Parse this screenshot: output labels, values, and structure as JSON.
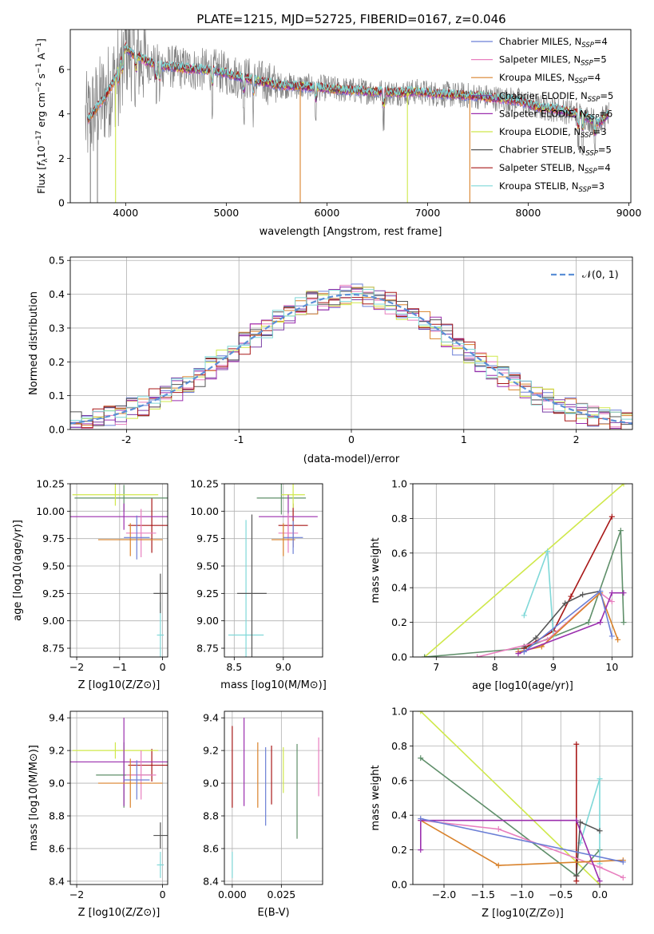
{
  "figure_title": "PLATE=1215, MJD=52725, FIBERID=0167, z=0.046",
  "colors": {
    "chabrier_miles": "#6b7fd6",
    "salpeter_miles": "#e87fbf",
    "kroupa_miles": "#d9822b",
    "chabrier_elodie": "#7b3fa6",
    "salpeter_elodie": "#9b2fae",
    "kroupa_elodie": "#cfe84a",
    "chabrier_stelib": "#555555",
    "salpeter_stelib": "#a81818",
    "kroupa_stelib": "#7fd8d8",
    "data": "#808080",
    "gaussian": "#5b8fd6",
    "green": "#5f8f6a",
    "grid": "#b0b0b0"
  },
  "chart_data": [
    {
      "id": "spectrum",
      "type": "line",
      "title": "",
      "xlabel": "wavelength [Angstrom, rest frame]",
      "ylabel": "Flux [f_λ 10^-17 erg cm^-2 s^-1 A^-1]",
      "xlim": [
        3450,
        9020
      ],
      "ylim": [
        0,
        7.8
      ],
      "xticks": [
        4000,
        5000,
        6000,
        7000,
        8000,
        9000
      ],
      "yticks": [
        0,
        2,
        4,
        6
      ],
      "grid": false,
      "legend_position": "top-right",
      "legend": [
        {
          "label": "Chabrier MILES, N",
          "sub": "SSP",
          "tail": "=4",
          "color_key": "chabrier_miles"
        },
        {
          "label": "Salpeter MILES, N",
          "sub": "SSP",
          "tail": "=5",
          "color_key": "salpeter_miles"
        },
        {
          "label": "Kroupa MILES, N",
          "sub": "SSP",
          "tail": "=4",
          "color_key": "kroupa_miles"
        },
        {
          "label": "Chabrier ELODIE, N",
          "sub": "SSP",
          "tail": "=5",
          "color_key": "chabrier_elodie"
        },
        {
          "label": "Salpeter ELODIE, N",
          "sub": "SSP",
          "tail": "=6",
          "color_key": "salpeter_elodie"
        },
        {
          "label": "Kroupa ELODIE, N",
          "sub": "SSP",
          "tail": "=3",
          "color_key": "kroupa_elodie"
        },
        {
          "label": "Chabrier STELIB, N",
          "sub": "SSP",
          "tail": "=5",
          "color_key": "chabrier_stelib"
        },
        {
          "label": "Salpeter STELIB, N",
          "sub": "SSP",
          "tail": "=4",
          "color_key": "salpeter_stelib"
        },
        {
          "label": "Kroupa STELIB, N",
          "sub": "SSP",
          "tail": "=3",
          "color_key": "kroupa_stelib"
        }
      ],
      "continuum": {
        "x": [
          3620,
          3700,
          3800,
          3900,
          4000,
          4100,
          4200,
          4300,
          4500,
          4700,
          4900,
          5100,
          5300,
          5500,
          5700,
          5900,
          6100,
          6300,
          6500,
          6700,
          6900,
          7100,
          7300,
          7500,
          7700,
          7900,
          8100,
          8300,
          8500,
          8700,
          8800
        ],
        "y": [
          3.7,
          4.2,
          4.8,
          5.6,
          7.0,
          6.6,
          6.4,
          6.2,
          6.1,
          6.0,
          5.95,
          5.7,
          5.5,
          5.3,
          5.25,
          5.2,
          5.1,
          5.05,
          5.0,
          4.95,
          5.0,
          4.9,
          4.85,
          4.8,
          4.7,
          4.6,
          4.3,
          4.2,
          4.0,
          3.6,
          4.0
        ]
      },
      "absorption_x": [
        3934,
        3969,
        4102,
        4304,
        4340,
        4861,
        5175,
        5270,
        5890,
        6563,
        8498,
        8542,
        8662
      ],
      "spikes": [
        {
          "x": 3650,
          "y": 0,
          "color_key": "data"
        },
        {
          "x": 3720,
          "y": 0,
          "color_key": "data"
        },
        {
          "x": 3900,
          "y": 0,
          "color_key": "kroupa_elodie"
        },
        {
          "x": 5735,
          "y": 0,
          "color_key": "kroupa_miles"
        },
        {
          "x": 6800,
          "y": 0,
          "color_key": "kroupa_elodie"
        },
        {
          "x": 7420,
          "y": 0,
          "color_key": "kroupa_miles"
        }
      ]
    },
    {
      "id": "residuals",
      "type": "bar",
      "title": "",
      "xlabel": "(data-model)/error",
      "ylabel": "Normed distribution",
      "xlim": [
        -2.5,
        2.5
      ],
      "ylim": [
        0,
        0.51
      ],
      "xticks": [
        -2,
        -1,
        0,
        1,
        2
      ],
      "yticks": [
        0.0,
        0.1,
        0.2,
        0.3,
        0.4,
        0.5
      ],
      "grid": true,
      "legend_position": "top-right",
      "legend": [
        {
          "label": "𝒩(0, 1)",
          "color_key": "gaussian"
        }
      ],
      "bin_width": 0.1
    },
    {
      "id": "age_vs_Z",
      "type": "scatter",
      "xlabel": "Z [log10(Z/Z⊙)]",
      "ylabel": "age  [log10(age/yr)]",
      "xlim": [
        -2.15,
        0.12
      ],
      "ylim": [
        8.67,
        10.25
      ],
      "xticks": [
        -2,
        -1,
        0
      ],
      "yticks": [
        8.75,
        9.0,
        9.25,
        9.5,
        9.75,
        10.0,
        10.25
      ],
      "grid": true,
      "points": [
        {
          "x": -0.05,
          "y": 8.87,
          "xerr": 0.08,
          "yerr": 0.3,
          "color_key": "kroupa_stelib"
        },
        {
          "x": -0.05,
          "y": 9.25,
          "xerr": 0.16,
          "yerr": 0.18,
          "color_key": "chabrier_stelib"
        },
        {
          "x": -0.25,
          "y": 9.87,
          "xerr": 0.55,
          "yerr": 0.25,
          "color_key": "salpeter_stelib"
        },
        {
          "x": -0.9,
          "y": 10.12,
          "xerr": 1.15,
          "yerr": 0.12,
          "color_key": "green"
        },
        {
          "x": -1.1,
          "y": 10.15,
          "xerr": 1.0,
          "yerr": 0.1,
          "color_key": "kroupa_elodie"
        },
        {
          "x": -0.9,
          "y": 9.95,
          "xerr": 1.3,
          "yerr": 0.12,
          "color_key": "salpeter_elodie"
        },
        {
          "x": -0.5,
          "y": 9.8,
          "xerr": 0.35,
          "yerr": 0.22,
          "color_key": "salpeter_miles"
        },
        {
          "x": -0.75,
          "y": 9.74,
          "xerr": 0.75,
          "yerr": 0.15,
          "color_key": "kroupa_miles"
        },
        {
          "x": -0.6,
          "y": 9.76,
          "xerr": 0.3,
          "yerr": 0.2,
          "color_key": "chabrier_miles"
        }
      ]
    },
    {
      "id": "age_vs_mass",
      "type": "scatter",
      "xlabel": "mass [log10(M/M⊙)]",
      "ylabel": "",
      "xlim": [
        8.4,
        9.4
      ],
      "ylim": [
        8.67,
        10.25
      ],
      "xticks": [
        8.5,
        9.0
      ],
      "yticks": [
        8.75,
        9.0,
        9.25,
        9.5,
        9.75,
        10.0,
        10.25
      ],
      "grid": true,
      "points": [
        {
          "x": 8.62,
          "y": 8.87,
          "xerr": 0.18,
          "yerr": 1.05,
          "color_key": "kroupa_stelib"
        },
        {
          "x": 8.68,
          "y": 9.25,
          "xerr": 0.15,
          "yerr": 0.72,
          "color_key": "chabrier_stelib"
        },
        {
          "x": 9.1,
          "y": 9.87,
          "xerr": 0.15,
          "yerr": 0.2,
          "color_key": "salpeter_stelib"
        },
        {
          "x": 8.98,
          "y": 10.12,
          "xerr": 0.25,
          "yerr": 0.15,
          "color_key": "green"
        },
        {
          "x": 9.1,
          "y": 10.15,
          "xerr": 0.12,
          "yerr": 0.12,
          "color_key": "kroupa_elodie"
        },
        {
          "x": 9.05,
          "y": 9.95,
          "xerr": 0.3,
          "yerr": 0.2,
          "color_key": "salpeter_elodie"
        },
        {
          "x": 9.05,
          "y": 9.8,
          "xerr": 0.1,
          "yerr": 0.18,
          "color_key": "salpeter_miles"
        },
        {
          "x": 9.0,
          "y": 9.74,
          "xerr": 0.12,
          "yerr": 0.15,
          "color_key": "kroupa_miles"
        },
        {
          "x": 9.1,
          "y": 9.76,
          "xerr": 0.1,
          "yerr": 0.15,
          "color_key": "chabrier_miles"
        }
      ]
    },
    {
      "id": "massweight_vs_age",
      "type": "line",
      "xlabel": "age  [log10(age/yr)]",
      "ylabel": "mass weight",
      "xlim": [
        6.6,
        10.35
      ],
      "ylim": [
        0,
        1
      ],
      "xticks": [
        7,
        8,
        9,
        10
      ],
      "yticks": [
        0.0,
        0.2,
        0.4,
        0.6,
        0.8,
        1.0
      ],
      "grid": true,
      "series": [
        {
          "color_key": "kroupa_elodie",
          "x": [
            6.8,
            10.2
          ],
          "y": [
            0,
            1.0
          ]
        },
        {
          "color_key": "green",
          "x": [
            6.8,
            8.5,
            9.6,
            10.15,
            10.2
          ],
          "y": [
            0,
            0.05,
            0.2,
            0.73,
            0.2
          ]
        },
        {
          "color_key": "salpeter_stelib",
          "x": [
            8.5,
            9.0,
            9.3,
            10.0
          ],
          "y": [
            0.05,
            0.15,
            0.35,
            0.81
          ]
        },
        {
          "color_key": "kroupa_stelib",
          "x": [
            8.5,
            8.9,
            9.0
          ],
          "y": [
            0.24,
            0.61,
            0.12
          ]
        },
        {
          "color_key": "chabrier_stelib",
          "x": [
            8.5,
            8.7,
            9.2,
            9.5,
            9.8
          ],
          "y": [
            0.06,
            0.11,
            0.31,
            0.36,
            0.38
          ]
        },
        {
          "color_key": "salpeter_miles",
          "x": [
            7.7,
            8.9,
            9.8,
            10.0
          ],
          "y": [
            0,
            0.1,
            0.37,
            0.32
          ]
        },
        {
          "color_key": "kroupa_miles",
          "x": [
            8.4,
            8.8,
            9.8,
            10.1
          ],
          "y": [
            0.03,
            0.06,
            0.37,
            0.1
          ]
        },
        {
          "color_key": "salpeter_elodie",
          "x": [
            8.4,
            9.8,
            10.0,
            10.2
          ],
          "y": [
            0.02,
            0.2,
            0.37,
            0.37
          ]
        },
        {
          "color_key": "chabrier_miles",
          "x": [
            8.5,
            9.8,
            10.0
          ],
          "y": [
            0.03,
            0.38,
            0.12
          ]
        }
      ]
    },
    {
      "id": "mass_vs_Z",
      "type": "scatter",
      "xlabel": "Z [log10(Z/Z⊙)]",
      "ylabel": "mass [log10(M/M⊙)]",
      "xlim": [
        -2.15,
        0.12
      ],
      "ylim": [
        8.38,
        9.44
      ],
      "xticks": [
        -2,
        0
      ],
      "yticks": [
        8.4,
        8.6,
        8.8,
        9.0,
        9.2,
        9.4
      ],
      "grid": true,
      "points": [
        {
          "x": -0.05,
          "y": 8.5,
          "xerr": 0.08,
          "yerr": 0.08,
          "color_key": "kroupa_stelib"
        },
        {
          "x": -0.05,
          "y": 8.68,
          "xerr": 0.16,
          "yerr": 0.08,
          "color_key": "chabrier_stelib"
        },
        {
          "x": -0.25,
          "y": 9.11,
          "xerr": 0.55,
          "yerr": 0.1,
          "color_key": "salpeter_stelib"
        },
        {
          "x": -0.9,
          "y": 9.05,
          "xerr": 0.65,
          "yerr": 0.2,
          "color_key": "green"
        },
        {
          "x": -1.1,
          "y": 9.2,
          "xerr": 1.0,
          "yerr": 0.05,
          "color_key": "kroupa_elodie"
        },
        {
          "x": -0.9,
          "y": 9.13,
          "xerr": 1.3,
          "yerr": 0.27,
          "color_key": "salpeter_elodie"
        },
        {
          "x": -0.5,
          "y": 9.05,
          "xerr": 0.35,
          "yerr": 0.15,
          "color_key": "salpeter_miles"
        },
        {
          "x": -0.75,
          "y": 9.0,
          "xerr": 0.75,
          "yerr": 0.15,
          "color_key": "kroupa_miles"
        },
        {
          "x": -0.6,
          "y": 9.02,
          "xerr": 0.3,
          "yerr": 0.12,
          "color_key": "chabrier_miles"
        }
      ]
    },
    {
      "id": "mass_vs_ebv",
      "type": "scatter",
      "xlabel": "E(B-V)",
      "ylabel": "",
      "xlim": [
        -0.004,
        0.046
      ],
      "ylim": [
        8.38,
        9.44
      ],
      "xticks": [
        0.0,
        0.025
      ],
      "xtick_labels": [
        "0.000",
        "0.025"
      ],
      "yticks": [
        8.4,
        8.6,
        8.8,
        9.0,
        9.2,
        9.4
      ],
      "grid": true,
      "points": [
        {
          "x": 0.0,
          "y": 8.5,
          "xerr": 0,
          "yerr": 0.08,
          "color_key": "kroupa_stelib"
        },
        {
          "x": 0.0,
          "y": 9.1,
          "xerr": 0,
          "yerr": 0.25,
          "color_key": "salpeter_stelib"
        },
        {
          "x": 0.006,
          "y": 9.13,
          "xerr": 0,
          "yerr": 0.27,
          "color_key": "salpeter_elodie"
        },
        {
          "x": 0.013,
          "y": 9.05,
          "xerr": 0,
          "yerr": 0.2,
          "color_key": "kroupa_miles"
        },
        {
          "x": 0.017,
          "y": 8.98,
          "xerr": 0,
          "yerr": 0.24,
          "color_key": "chabrier_miles"
        },
        {
          "x": 0.02,
          "y": 9.05,
          "xerr": 0,
          "yerr": 0.18,
          "color_key": "salpeter_stelib"
        },
        {
          "x": 0.026,
          "y": 9.08,
          "xerr": 0,
          "yerr": 0.14,
          "color_key": "kroupa_elodie"
        },
        {
          "x": 0.033,
          "y": 8.95,
          "xerr": 0,
          "yerr": 0.29,
          "color_key": "green"
        },
        {
          "x": 0.044,
          "y": 9.1,
          "xerr": 0,
          "yerr": 0.18,
          "color_key": "salpeter_miles"
        }
      ]
    },
    {
      "id": "massweight_vs_Z",
      "type": "line",
      "xlabel": "Z [log10(Z/Z⊙)]",
      "ylabel": "mass weight",
      "xlim": [
        -2.4,
        0.42
      ],
      "ylim": [
        0,
        1
      ],
      "xticks": [
        -2.0,
        -1.5,
        -1.0,
        -0.5,
        0.0
      ],
      "yticks": [
        0.0,
        0.2,
        0.4,
        0.6,
        0.8,
        1.0
      ],
      "grid": true,
      "series": [
        {
          "color_key": "kroupa_elodie",
          "x": [
            -2.3,
            0.0
          ],
          "y": [
            1.0,
            0.0
          ]
        },
        {
          "color_key": "green",
          "x": [
            -2.3,
            -0.3,
            0.0
          ],
          "y": [
            0.73,
            0.05,
            0.2
          ]
        },
        {
          "color_key": "salpeter_stelib",
          "x": [
            -0.3,
            -0.3,
            -0.3
          ],
          "y": [
            0.81,
            0.02,
            0.05
          ]
        },
        {
          "color_key": "kroupa_stelib",
          "x": [
            -0.25,
            0.0,
            0.0
          ],
          "y": [
            0.24,
            0.61,
            0.12
          ]
        },
        {
          "color_key": "chabrier_stelib",
          "x": [
            -0.3,
            -0.25,
            0.0
          ],
          "y": [
            0.05,
            0.36,
            0.31
          ]
        },
        {
          "color_key": "salpeter_miles",
          "x": [
            -2.3,
            -1.3,
            0.0,
            0.3
          ],
          "y": [
            0.37,
            0.32,
            0.1,
            0.04
          ]
        },
        {
          "color_key": "kroupa_miles",
          "x": [
            -2.3,
            -1.3,
            0.3
          ],
          "y": [
            0.37,
            0.11,
            0.14
          ]
        },
        {
          "color_key": "salpeter_elodie",
          "x": [
            -2.3,
            -2.3,
            -0.3,
            0.0
          ],
          "y": [
            0.2,
            0.37,
            0.37,
            0.02
          ]
        },
        {
          "color_key": "chabrier_miles",
          "x": [
            -2.3,
            0.3
          ],
          "y": [
            0.38,
            0.13
          ]
        }
      ]
    }
  ]
}
